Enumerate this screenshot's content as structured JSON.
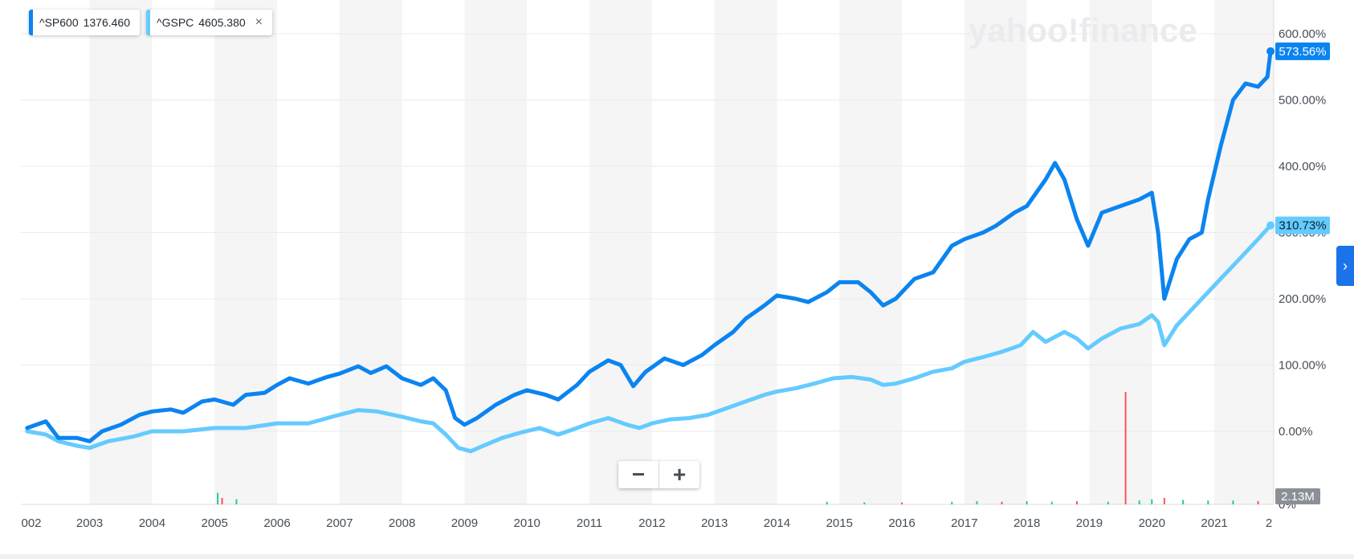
{
  "watermark": "yahoo!finance",
  "legend": [
    {
      "symbol": "^SP600",
      "value": "1376.460",
      "color": "#0b84f0",
      "closable": false
    },
    {
      "symbol": "^GSPC",
      "value": "4605.380",
      "color": "#64cbff",
      "closable": true
    }
  ],
  "close_glyph": "×",
  "zoom": {
    "minus": "−",
    "plus": "+"
  },
  "panel_toggle": "›",
  "volume_label": "2.13M",
  "chart_data": {
    "type": "line",
    "x_ticks": [
      "002",
      "2003",
      "2004",
      "2005",
      "2006",
      "2007",
      "2008",
      "2009",
      "2010",
      "2011",
      "2012",
      "2013",
      "2014",
      "2015",
      "2016",
      "2017",
      "2018",
      "2019",
      "2020",
      "2021",
      "2"
    ],
    "y_ticks": [
      "600.00%",
      "500.00%",
      "400.00%",
      "300.00%",
      "200.00%",
      "100.00%",
      "0.00%",
      "0%"
    ],
    "ylim": [
      -110,
      640
    ],
    "xlim": [
      2001.9,
      2021.95
    ],
    "colors": {
      "sp600": "#0b84f0",
      "gspc": "#64cbff",
      "grid": "#ebebeb",
      "band": "#f5f5f5",
      "volume_up": "#26c99a",
      "volume_down": "#ff4f5e"
    },
    "series": [
      {
        "name": "^SP600",
        "last_label": "573.56%",
        "points": [
          [
            2002.0,
            5
          ],
          [
            2002.3,
            15
          ],
          [
            2002.5,
            -10
          ],
          [
            2002.8,
            -10
          ],
          [
            2003.0,
            -15
          ],
          [
            2003.2,
            0
          ],
          [
            2003.5,
            10
          ],
          [
            2003.8,
            25
          ],
          [
            2004.0,
            30
          ],
          [
            2004.3,
            33
          ],
          [
            2004.5,
            28
          ],
          [
            2004.8,
            45
          ],
          [
            2005.0,
            48
          ],
          [
            2005.3,
            40
          ],
          [
            2005.5,
            55
          ],
          [
            2005.8,
            58
          ],
          [
            2006.0,
            70
          ],
          [
            2006.2,
            80
          ],
          [
            2006.5,
            72
          ],
          [
            2006.8,
            82
          ],
          [
            2007.0,
            87
          ],
          [
            2007.3,
            98
          ],
          [
            2007.5,
            88
          ],
          [
            2007.75,
            98
          ],
          [
            2008.0,
            80
          ],
          [
            2008.3,
            70
          ],
          [
            2008.5,
            80
          ],
          [
            2008.7,
            62
          ],
          [
            2008.85,
            20
          ],
          [
            2009.0,
            10
          ],
          [
            2009.2,
            20
          ],
          [
            2009.5,
            40
          ],
          [
            2009.8,
            55
          ],
          [
            2010.0,
            62
          ],
          [
            2010.3,
            55
          ],
          [
            2010.5,
            48
          ],
          [
            2010.8,
            70
          ],
          [
            2011.0,
            90
          ],
          [
            2011.3,
            107
          ],
          [
            2011.5,
            100
          ],
          [
            2011.7,
            68
          ],
          [
            2011.9,
            90
          ],
          [
            2012.2,
            110
          ],
          [
            2012.5,
            100
          ],
          [
            2012.8,
            115
          ],
          [
            2013.0,
            130
          ],
          [
            2013.3,
            150
          ],
          [
            2013.5,
            170
          ],
          [
            2013.8,
            190
          ],
          [
            2014.0,
            205
          ],
          [
            2014.3,
            200
          ],
          [
            2014.5,
            195
          ],
          [
            2014.8,
            210
          ],
          [
            2015.0,
            225
          ],
          [
            2015.3,
            225
          ],
          [
            2015.5,
            210
          ],
          [
            2015.7,
            190
          ],
          [
            2015.9,
            200
          ],
          [
            2016.2,
            230
          ],
          [
            2016.5,
            240
          ],
          [
            2016.8,
            280
          ],
          [
            2017.0,
            290
          ],
          [
            2017.3,
            300
          ],
          [
            2017.5,
            310
          ],
          [
            2017.8,
            330
          ],
          [
            2018.0,
            340
          ],
          [
            2018.3,
            380
          ],
          [
            2018.45,
            405
          ],
          [
            2018.6,
            380
          ],
          [
            2018.8,
            320
          ],
          [
            2018.98,
            280
          ],
          [
            2019.2,
            330
          ],
          [
            2019.5,
            340
          ],
          [
            2019.8,
            350
          ],
          [
            2020.0,
            360
          ],
          [
            2020.1,
            300
          ],
          [
            2020.2,
            200
          ],
          [
            2020.4,
            260
          ],
          [
            2020.6,
            290
          ],
          [
            2020.8,
            300
          ],
          [
            2020.9,
            350
          ],
          [
            2021.1,
            430
          ],
          [
            2021.3,
            500
          ],
          [
            2021.5,
            525
          ],
          [
            2021.7,
            520
          ],
          [
            2021.85,
            535
          ],
          [
            2021.9,
            573.56
          ]
        ]
      },
      {
        "name": "^GSPC",
        "last_label": "310.73%",
        "points": [
          [
            2002.0,
            0
          ],
          [
            2002.3,
            -5
          ],
          [
            2002.5,
            -15
          ],
          [
            2002.8,
            -22
          ],
          [
            2003.0,
            -25
          ],
          [
            2003.3,
            -15
          ],
          [
            2003.7,
            -8
          ],
          [
            2004.0,
            0
          ],
          [
            2004.5,
            0
          ],
          [
            2005.0,
            5
          ],
          [
            2005.5,
            5
          ],
          [
            2006.0,
            12
          ],
          [
            2006.5,
            12
          ],
          [
            2007.0,
            25
          ],
          [
            2007.3,
            32
          ],
          [
            2007.6,
            30
          ],
          [
            2008.0,
            22
          ],
          [
            2008.3,
            15
          ],
          [
            2008.5,
            12
          ],
          [
            2008.7,
            -5
          ],
          [
            2008.9,
            -25
          ],
          [
            2009.1,
            -30
          ],
          [
            2009.3,
            -22
          ],
          [
            2009.6,
            -10
          ],
          [
            2009.9,
            -2
          ],
          [
            2010.2,
            5
          ],
          [
            2010.5,
            -5
          ],
          [
            2010.8,
            5
          ],
          [
            2011.0,
            12
          ],
          [
            2011.3,
            20
          ],
          [
            2011.6,
            10
          ],
          [
            2011.8,
            5
          ],
          [
            2012.0,
            12
          ],
          [
            2012.3,
            18
          ],
          [
            2012.6,
            20
          ],
          [
            2012.9,
            25
          ],
          [
            2013.2,
            35
          ],
          [
            2013.5,
            45
          ],
          [
            2013.8,
            55
          ],
          [
            2014.0,
            60
          ],
          [
            2014.3,
            65
          ],
          [
            2014.6,
            72
          ],
          [
            2014.9,
            80
          ],
          [
            2015.2,
            82
          ],
          [
            2015.5,
            78
          ],
          [
            2015.7,
            70
          ],
          [
            2015.9,
            72
          ],
          [
            2016.2,
            80
          ],
          [
            2016.5,
            90
          ],
          [
            2016.8,
            95
          ],
          [
            2017.0,
            105
          ],
          [
            2017.3,
            112
          ],
          [
            2017.6,
            120
          ],
          [
            2017.9,
            130
          ],
          [
            2018.0,
            140
          ],
          [
            2018.1,
            150
          ],
          [
            2018.3,
            135
          ],
          [
            2018.6,
            150
          ],
          [
            2018.8,
            140
          ],
          [
            2018.98,
            125
          ],
          [
            2019.2,
            140
          ],
          [
            2019.5,
            155
          ],
          [
            2019.8,
            162
          ],
          [
            2020.0,
            175
          ],
          [
            2020.1,
            165
          ],
          [
            2020.2,
            130
          ],
          [
            2020.4,
            160
          ],
          [
            2020.6,
            180
          ],
          [
            2020.8,
            200
          ],
          [
            2021.0,
            220
          ],
          [
            2021.3,
            250
          ],
          [
            2021.5,
            270
          ],
          [
            2021.7,
            290
          ],
          [
            2021.9,
            310.73
          ]
        ]
      }
    ],
    "volume": [
      [
        2005.05,
        18,
        "up"
      ],
      [
        2005.12,
        10,
        "down"
      ],
      [
        2005.35,
        8,
        "up"
      ],
      [
        2014.8,
        4,
        "up"
      ],
      [
        2015.4,
        3,
        "up"
      ],
      [
        2016.0,
        3,
        "down"
      ],
      [
        2016.8,
        4,
        "up"
      ],
      [
        2017.2,
        5,
        "up"
      ],
      [
        2017.6,
        4,
        "down"
      ],
      [
        2018.0,
        5,
        "up"
      ],
      [
        2018.4,
        4,
        "up"
      ],
      [
        2018.8,
        5,
        "down"
      ],
      [
        2019.3,
        4,
        "up"
      ],
      [
        2019.58,
        175,
        "down"
      ],
      [
        2019.8,
        6,
        "up"
      ],
      [
        2020.0,
        8,
        "up"
      ],
      [
        2020.2,
        10,
        "down"
      ],
      [
        2020.5,
        7,
        "up"
      ],
      [
        2020.9,
        6,
        "up"
      ],
      [
        2021.3,
        6,
        "up"
      ],
      [
        2021.7,
        5,
        "down"
      ]
    ]
  }
}
